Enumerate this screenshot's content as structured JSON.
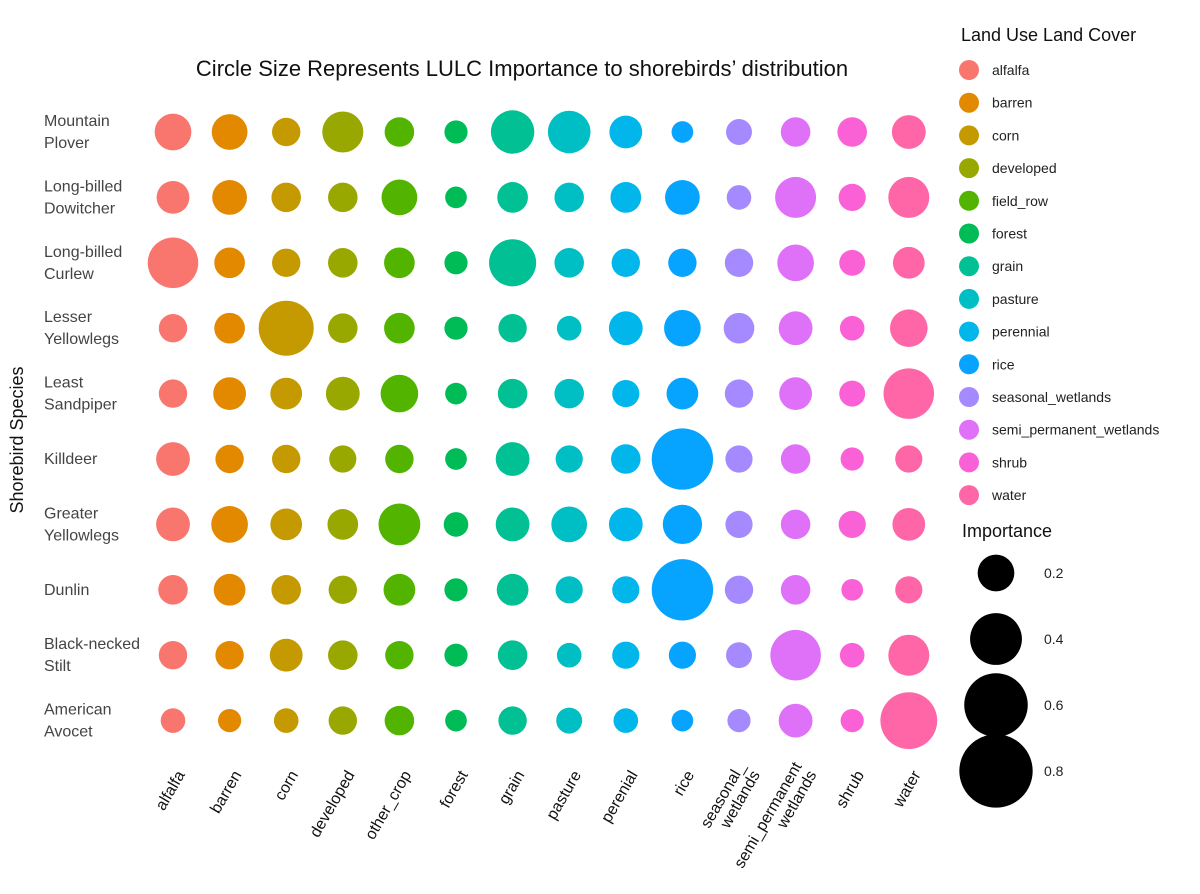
{
  "chart_data": {
    "type": "scatter",
    "title": "Circle Size Represents LULC Importance to shorebirds’ distribution",
    "xlabel": "",
    "ylabel": "Shorebird Species",
    "x_categories": [
      [
        "alfalfa"
      ],
      [
        "barren"
      ],
      [
        "corn"
      ],
      [
        "developed"
      ],
      [
        "other_crop"
      ],
      [
        "forest"
      ],
      [
        "grain"
      ],
      [
        "pasture"
      ],
      [
        "perenial"
      ],
      [
        "rice"
      ],
      [
        "seasonal_",
        "wetlands"
      ],
      [
        "semi_permanent",
        "wetlands"
      ],
      [
        "shrub"
      ],
      [
        "water"
      ]
    ],
    "y_categories": [
      [
        "Mountain",
        "Plover"
      ],
      [
        "Long-billed",
        "Dowitcher"
      ],
      [
        "Long-billed",
        "Curlew"
      ],
      [
        "Lesser",
        "Yellowlegs"
      ],
      [
        "Least",
        "Sandpiper"
      ],
      [
        "Killdeer"
      ],
      [
        "Greater",
        "Yellowlegs"
      ],
      [
        "Dunlin"
      ],
      [
        "Black-necked",
        "Stilt"
      ],
      [
        "American",
        "Avocet"
      ]
    ],
    "colors": [
      "#F8766D",
      "#E38900",
      "#C49A00",
      "#99A800",
      "#53B400",
      "#00BC56",
      "#00C094",
      "#00BFC4",
      "#00B6EB",
      "#06A4FF",
      "#A58AFF",
      "#DF70F8",
      "#FB61D7",
      "#FF66A8"
    ],
    "importance": [
      [
        0.2,
        0.19,
        0.12,
        0.25,
        0.13,
        0.08,
        0.28,
        0.27,
        0.16,
        0.07,
        0.1,
        0.13,
        0.13,
        0.17
      ],
      [
        0.16,
        0.18,
        0.13,
        0.13,
        0.19,
        0.07,
        0.14,
        0.13,
        0.14,
        0.18,
        0.09,
        0.25,
        0.11,
        0.25
      ],
      [
        0.38,
        0.14,
        0.12,
        0.13,
        0.14,
        0.08,
        0.33,
        0.13,
        0.12,
        0.12,
        0.12,
        0.2,
        0.1,
        0.15
      ],
      [
        0.12,
        0.14,
        0.45,
        0.13,
        0.14,
        0.08,
        0.12,
        0.09,
        0.17,
        0.2,
        0.14,
        0.17,
        0.09,
        0.21
      ],
      [
        0.12,
        0.16,
        0.15,
        0.17,
        0.21,
        0.07,
        0.13,
        0.13,
        0.11,
        0.15,
        0.12,
        0.16,
        0.1,
        0.38
      ],
      [
        0.17,
        0.12,
        0.12,
        0.11,
        0.12,
        0.07,
        0.17,
        0.11,
        0.13,
        0.56,
        0.11,
        0.13,
        0.08,
        0.11
      ],
      [
        0.17,
        0.2,
        0.15,
        0.14,
        0.26,
        0.09,
        0.17,
        0.19,
        0.17,
        0.23,
        0.11,
        0.13,
        0.11,
        0.16
      ],
      [
        0.13,
        0.15,
        0.13,
        0.12,
        0.15,
        0.08,
        0.15,
        0.11,
        0.11,
        0.56,
        0.12,
        0.13,
        0.07,
        0.11
      ],
      [
        0.12,
        0.12,
        0.16,
        0.13,
        0.12,
        0.08,
        0.13,
        0.09,
        0.11,
        0.11,
        0.1,
        0.38,
        0.09,
        0.25
      ],
      [
        0.09,
        0.08,
        0.09,
        0.12,
        0.13,
        0.07,
        0.12,
        0.1,
        0.09,
        0.07,
        0.08,
        0.17,
        0.08,
        0.48
      ]
    ],
    "legend_color": {
      "title": "Land Use Land Cover",
      "position": "right",
      "items": [
        "alfalfa",
        "barren",
        "corn",
        "developed",
        "field_row",
        "forest",
        "grain",
        "pasture",
        "perennial",
        "rice",
        "seasonal_wetlands",
        "semi_permanent_wetlands",
        "shrub",
        "water"
      ]
    },
    "legend_size": {
      "title": "Importance",
      "position": "right",
      "values": [
        0.2,
        0.4,
        0.6,
        0.8
      ],
      "labels": [
        "0.2",
        "0.4",
        "0.6",
        "0.8"
      ],
      "color": "#000000"
    },
    "grid": false
  }
}
